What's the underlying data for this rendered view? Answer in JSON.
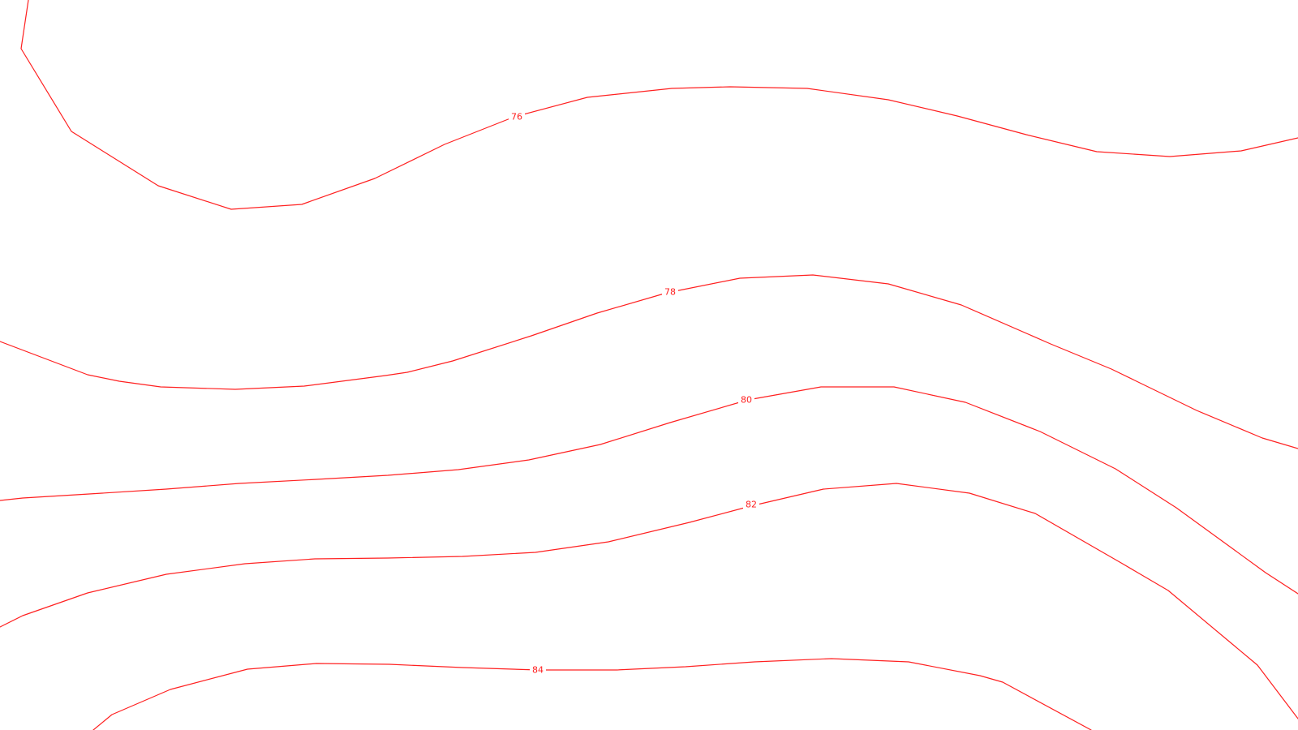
{
  "map": {
    "background_color": "#ffffff",
    "contour_color": "#ff2020",
    "contours": [
      {
        "elevation": 76,
        "label": "76"
      },
      {
        "elevation": 78,
        "label": "78"
      },
      {
        "elevation": 80,
        "label": "80"
      },
      {
        "elevation": 82,
        "label": "82"
      },
      {
        "elevation": 84,
        "label": "84"
      }
    ]
  }
}
